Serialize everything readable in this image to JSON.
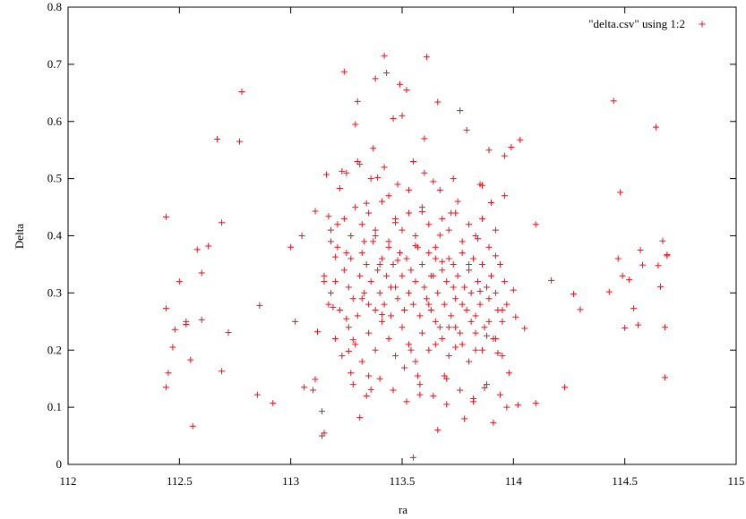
{
  "chart_data": {
    "type": "scatter",
    "title": "",
    "xlabel": "ra",
    "ylabel": "Delta",
    "xlim": [
      112,
      115
    ],
    "ylim": [
      0,
      0.8
    ],
    "x_ticks": [
      "112",
      "112.5",
      "113",
      "113.5",
      "114",
      "114.5",
      "115"
    ],
    "y_ticks": [
      "0",
      "0.1",
      "0.2",
      "0.3",
      "0.4",
      "0.5",
      "0.6",
      "0.7",
      "0.8"
    ],
    "grid": false,
    "legend_position": "top-right",
    "series": [
      {
        "name": "\"delta.csv\" using 1:2",
        "color": "#e8141e",
        "marker": "plus",
        "points": [
          [
            112.44,
            0.433
          ],
          [
            112.44,
            0.273
          ],
          [
            112.45,
            0.16
          ],
          [
            112.44,
            0.135
          ],
          [
            112.47,
            0.205
          ],
          [
            112.48,
            0.236
          ],
          [
            112.5,
            0.32
          ],
          [
            112.53,
            0.25
          ],
          [
            112.53,
            0.245
          ],
          [
            112.55,
            0.183
          ],
          [
            112.56,
            0.067
          ],
          [
            112.58,
            0.376
          ],
          [
            112.6,
            0.335
          ],
          [
            112.6,
            0.253
          ],
          [
            112.63,
            0.382
          ],
          [
            112.67,
            0.569
          ],
          [
            112.69,
            0.423
          ],
          [
            112.69,
            0.163
          ],
          [
            112.72,
            0.231
          ],
          [
            112.77,
            0.565
          ],
          [
            112.78,
            0.652
          ],
          [
            112.85,
            0.122
          ],
          [
            112.86,
            0.278
          ],
          [
            112.92,
            0.107
          ],
          [
            113.0,
            0.38
          ],
          [
            113.02,
            0.25
          ],
          [
            113.05,
            0.4
          ],
          [
            113.06,
            0.135
          ],
          [
            113.1,
            0.13
          ],
          [
            113.11,
            0.149
          ],
          [
            113.11,
            0.443
          ],
          [
            113.12,
            0.232
          ],
          [
            113.14,
            0.05
          ],
          [
            113.14,
            0.093
          ],
          [
            113.15,
            0.055
          ],
          [
            113.15,
            0.32
          ],
          [
            113.16,
            0.507
          ],
          [
            113.17,
            0.434
          ],
          [
            113.18,
            0.39
          ],
          [
            113.19,
            0.275
          ],
          [
            113.2,
            0.363
          ],
          [
            113.21,
            0.42
          ],
          [
            113.22,
            0.483
          ],
          [
            113.23,
            0.513
          ],
          [
            113.24,
            0.687
          ],
          [
            113.25,
            0.37
          ],
          [
            113.25,
            0.255
          ],
          [
            113.26,
            0.198
          ],
          [
            113.27,
            0.16
          ],
          [
            113.28,
            0.218
          ],
          [
            113.29,
            0.595
          ],
          [
            113.3,
            0.635
          ],
          [
            113.31,
            0.525
          ],
          [
            113.31,
            0.082
          ],
          [
            113.32,
            0.29
          ],
          [
            113.33,
            0.39
          ],
          [
            113.34,
            0.457
          ],
          [
            113.35,
            0.155
          ],
          [
            113.36,
            0.131
          ],
          [
            113.37,
            0.553
          ],
          [
            113.38,
            0.675
          ],
          [
            113.38,
            0.4
          ],
          [
            113.39,
            0.502
          ],
          [
            113.4,
            0.35
          ],
          [
            113.41,
            0.262
          ],
          [
            113.42,
            0.715
          ],
          [
            113.43,
            0.685
          ],
          [
            113.44,
            0.47
          ],
          [
            113.45,
            0.31
          ],
          [
            113.46,
            0.605
          ],
          [
            113.47,
            0.423
          ],
          [
            113.48,
            0.357
          ],
          [
            113.49,
            0.665
          ],
          [
            113.5,
            0.61
          ],
          [
            113.51,
            0.169
          ],
          [
            113.52,
            0.655
          ],
          [
            113.53,
            0.48
          ],
          [
            113.54,
            0.2
          ],
          [
            113.55,
            0.012
          ],
          [
            113.56,
            0.383
          ],
          [
            113.57,
            0.155
          ],
          [
            113.58,
            0.122
          ],
          [
            113.59,
            0.442
          ],
          [
            113.6,
            0.57
          ],
          [
            113.61,
            0.713
          ],
          [
            113.62,
            0.28
          ],
          [
            113.63,
            0.33
          ],
          [
            113.64,
            0.495
          ],
          [
            113.65,
            0.21
          ],
          [
            113.66,
            0.634
          ],
          [
            113.66,
            0.06
          ],
          [
            113.67,
            0.401
          ],
          [
            113.68,
            0.355
          ],
          [
            113.69,
            0.155
          ],
          [
            113.7,
            0.105
          ],
          [
            113.71,
            0.24
          ],
          [
            113.72,
            0.44
          ],
          [
            113.73,
            0.31
          ],
          [
            113.74,
            0.205
          ],
          [
            113.75,
            0.46
          ],
          [
            113.76,
            0.619
          ],
          [
            113.77,
            0.28
          ],
          [
            113.78,
            0.08
          ],
          [
            113.79,
            0.585
          ],
          [
            113.8,
            0.35
          ],
          [
            113.81,
            0.25
          ],
          [
            113.82,
            0.115
          ],
          [
            113.83,
            0.2
          ],
          [
            113.84,
            0.395
          ],
          [
            113.85,
            0.303
          ],
          [
            113.86,
            0.488
          ],
          [
            113.87,
            0.134
          ],
          [
            113.88,
            0.225
          ],
          [
            113.89,
            0.55
          ],
          [
            113.9,
            0.458
          ],
          [
            113.91,
            0.073
          ],
          [
            113.92,
            0.365
          ],
          [
            113.93,
            0.195
          ],
          [
            113.94,
            0.122
          ],
          [
            113.95,
            0.27
          ],
          [
            113.96,
            0.54
          ],
          [
            113.96,
            0.47
          ],
          [
            113.97,
            0.1
          ],
          [
            113.98,
            0.16
          ],
          [
            113.99,
            0.555
          ],
          [
            114.0,
            0.305
          ],
          [
            114.01,
            0.258
          ],
          [
            114.02,
            0.104
          ],
          [
            114.03,
            0.568
          ],
          [
            114.05,
            0.238
          ],
          [
            114.1,
            0.107
          ],
          [
            114.1,
            0.42
          ],
          [
            114.17,
            0.322
          ],
          [
            114.23,
            0.135
          ],
          [
            114.27,
            0.298
          ],
          [
            114.3,
            0.271
          ],
          [
            114.43,
            0.302
          ],
          [
            114.45,
            0.636
          ],
          [
            114.47,
            0.36
          ],
          [
            114.48,
            0.476
          ],
          [
            114.49,
            0.33
          ],
          [
            114.5,
            0.239
          ],
          [
            114.52,
            0.323
          ],
          [
            114.54,
            0.273
          ],
          [
            114.56,
            0.244
          ],
          [
            114.57,
            0.375
          ],
          [
            114.58,
            0.349
          ],
          [
            114.64,
            0.59
          ],
          [
            114.65,
            0.348
          ],
          [
            114.66,
            0.311
          ],
          [
            114.67,
            0.391
          ],
          [
            114.68,
            0.24
          ],
          [
            114.68,
            0.152
          ],
          [
            114.69,
            0.367
          ],
          [
            114.69,
            0.365
          ],
          [
            113.15,
            0.33
          ],
          [
            113.17,
            0.28
          ],
          [
            113.18,
            0.3
          ],
          [
            113.2,
            0.32
          ],
          [
            113.22,
            0.27
          ],
          [
            113.24,
            0.34
          ],
          [
            113.26,
            0.31
          ],
          [
            113.27,
            0.36
          ],
          [
            113.28,
            0.29
          ],
          [
            113.3,
            0.26
          ],
          [
            113.31,
            0.33
          ],
          [
            113.32,
            0.37
          ],
          [
            113.33,
            0.3
          ],
          [
            113.34,
            0.35
          ],
          [
            113.35,
            0.28
          ],
          [
            113.36,
            0.32
          ],
          [
            113.37,
            0.39
          ],
          [
            113.38,
            0.27
          ],
          [
            113.39,
            0.34
          ],
          [
            113.4,
            0.3
          ],
          [
            113.41,
            0.36
          ],
          [
            113.42,
            0.28
          ],
          [
            113.43,
            0.33
          ],
          [
            113.44,
            0.38
          ],
          [
            113.45,
            0.26
          ],
          [
            113.46,
            0.35
          ],
          [
            113.47,
            0.31
          ],
          [
            113.48,
            0.29
          ],
          [
            113.49,
            0.37
          ],
          [
            113.5,
            0.33
          ],
          [
            113.51,
            0.27
          ],
          [
            113.52,
            0.36
          ],
          [
            113.53,
            0.3
          ],
          [
            113.54,
            0.34
          ],
          [
            113.55,
            0.28
          ],
          [
            113.56,
            0.32
          ],
          [
            113.57,
            0.38
          ],
          [
            113.58,
            0.26
          ],
          [
            113.59,
            0.35
          ],
          [
            113.6,
            0.31
          ],
          [
            113.61,
            0.29
          ],
          [
            113.62,
            0.37
          ],
          [
            113.63,
            0.27
          ],
          [
            113.64,
            0.33
          ],
          [
            113.65,
            0.36
          ],
          [
            113.66,
            0.3
          ],
          [
            113.67,
            0.24
          ],
          [
            113.68,
            0.34
          ],
          [
            113.69,
            0.28
          ],
          [
            113.7,
            0.32
          ],
          [
            113.71,
            0.36
          ],
          [
            113.72,
            0.26
          ],
          [
            113.73,
            0.35
          ],
          [
            113.74,
            0.29
          ],
          [
            113.75,
            0.33
          ],
          [
            113.76,
            0.23
          ],
          [
            113.77,
            0.37
          ],
          [
            113.78,
            0.31
          ],
          [
            113.79,
            0.27
          ],
          [
            113.8,
            0.34
          ],
          [
            113.81,
            0.3
          ],
          [
            113.82,
            0.36
          ],
          [
            113.83,
            0.26
          ],
          [
            113.84,
            0.32
          ],
          [
            113.85,
            0.28
          ],
          [
            113.86,
            0.35
          ],
          [
            113.87,
            0.24
          ],
          [
            113.88,
            0.31
          ],
          [
            113.89,
            0.29
          ],
          [
            113.9,
            0.33
          ],
          [
            113.91,
            0.22
          ],
          [
            113.92,
            0.3
          ],
          [
            113.93,
            0.27
          ],
          [
            113.94,
            0.35
          ],
          [
            113.95,
            0.25
          ],
          [
            113.96,
            0.32
          ],
          [
            113.97,
            0.28
          ],
          [
            113.18,
            0.41
          ],
          [
            113.21,
            0.38
          ],
          [
            113.24,
            0.43
          ],
          [
            113.27,
            0.4
          ],
          [
            113.29,
            0.45
          ],
          [
            113.32,
            0.42
          ],
          [
            113.35,
            0.44
          ],
          [
            113.38,
            0.41
          ],
          [
            113.41,
            0.46
          ],
          [
            113.44,
            0.39
          ],
          [
            113.47,
            0.43
          ],
          [
            113.5,
            0.41
          ],
          [
            113.53,
            0.44
          ],
          [
            113.56,
            0.4
          ],
          [
            113.59,
            0.45
          ],
          [
            113.62,
            0.42
          ],
          [
            113.65,
            0.38
          ],
          [
            113.68,
            0.43
          ],
          [
            113.71,
            0.41
          ],
          [
            113.74,
            0.44
          ],
          [
            113.77,
            0.39
          ],
          [
            113.8,
            0.42
          ],
          [
            113.83,
            0.4
          ],
          [
            113.86,
            0.43
          ],
          [
            113.89,
            0.38
          ],
          [
            113.92,
            0.41
          ],
          [
            113.2,
            0.22
          ],
          [
            113.23,
            0.19
          ],
          [
            113.26,
            0.24
          ],
          [
            113.29,
            0.21
          ],
          [
            113.32,
            0.18
          ],
          [
            113.35,
            0.23
          ],
          [
            113.38,
            0.2
          ],
          [
            113.41,
            0.25
          ],
          [
            113.44,
            0.22
          ],
          [
            113.47,
            0.19
          ],
          [
            113.5,
            0.24
          ],
          [
            113.53,
            0.21
          ],
          [
            113.56,
            0.18
          ],
          [
            113.59,
            0.23
          ],
          [
            113.62,
            0.2
          ],
          [
            113.65,
            0.25
          ],
          [
            113.68,
            0.22
          ],
          [
            113.71,
            0.19
          ],
          [
            113.74,
            0.24
          ],
          [
            113.77,
            0.21
          ],
          [
            113.8,
            0.18
          ],
          [
            113.83,
            0.23
          ],
          [
            113.86,
            0.2
          ],
          [
            113.89,
            0.25
          ],
          [
            113.92,
            0.22
          ],
          [
            113.95,
            0.19
          ],
          [
            113.25,
            0.51
          ],
          [
            113.3,
            0.53
          ],
          [
            113.36,
            0.5
          ],
          [
            113.42,
            0.52
          ],
          [
            113.48,
            0.49
          ],
          [
            113.55,
            0.53
          ],
          [
            113.6,
            0.51
          ],
          [
            113.67,
            0.48
          ],
          [
            113.73,
            0.5
          ],
          [
            113.85,
            0.49
          ],
          [
            113.28,
            0.14
          ],
          [
            113.34,
            0.12
          ],
          [
            113.4,
            0.15
          ],
          [
            113.46,
            0.13
          ],
          [
            113.52,
            0.11
          ],
          [
            113.58,
            0.14
          ],
          [
            113.64,
            0.12
          ],
          [
            113.7,
            0.15
          ],
          [
            113.76,
            0.13
          ],
          [
            113.82,
            0.11
          ],
          [
            113.88,
            0.14
          ]
        ]
      }
    ]
  }
}
